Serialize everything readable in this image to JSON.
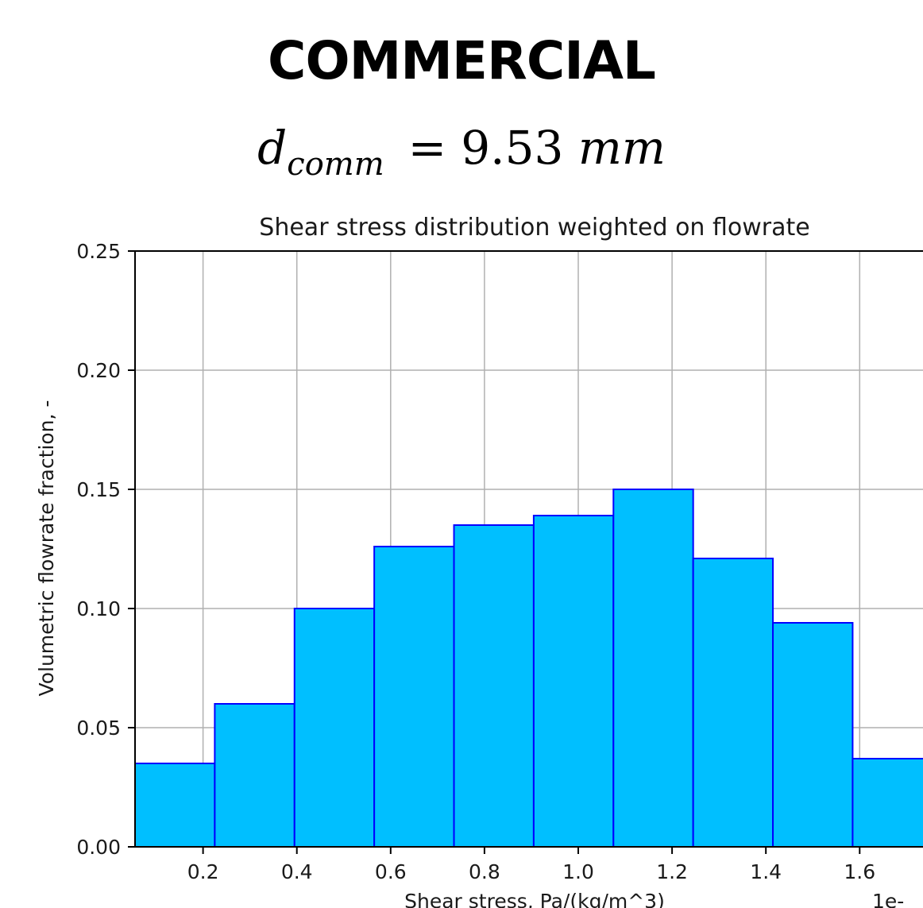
{
  "header": {
    "title": "COMMERCIAL",
    "formula": {
      "variable": "d",
      "subscript": "comm",
      "equals": "=",
      "value": "9.53",
      "unit": "mm"
    }
  },
  "chart_data": {
    "type": "bar",
    "title": "Shear stress distribution weighted on flowrate",
    "xlabel": "Shear stress, Pa/(kg/m^3)",
    "ylabel": "Volumetric flowrate fraction, -",
    "offset_label": "1e-",
    "xlim": [
      0.055,
      1.735
    ],
    "ylim": [
      0,
      0.25
    ],
    "x_ticks": [
      0.2,
      0.4,
      0.6,
      0.8,
      1.0,
      1.2,
      1.4,
      1.6
    ],
    "x_tick_labels": [
      "0.2",
      "0.4",
      "0.6",
      "0.8",
      "1.0",
      "1.2",
      "1.4",
      "1.6"
    ],
    "y_ticks": [
      0.0,
      0.05,
      0.1,
      0.15,
      0.2,
      0.25
    ],
    "y_tick_labels": [
      "0.00",
      "0.05",
      "0.10",
      "0.15",
      "0.20",
      "0.25"
    ],
    "grid": true,
    "bar_color": "#00bfff",
    "edge_color": "#0000ff",
    "bins": [
      {
        "x0": 0.055,
        "x1": 0.225,
        "value": 0.035
      },
      {
        "x0": 0.225,
        "x1": 0.395,
        "value": 0.06
      },
      {
        "x0": 0.395,
        "x1": 0.565,
        "value": 0.1
      },
      {
        "x0": 0.565,
        "x1": 0.735,
        "value": 0.126
      },
      {
        "x0": 0.735,
        "x1": 0.905,
        "value": 0.135
      },
      {
        "x0": 0.905,
        "x1": 1.075,
        "value": 0.139
      },
      {
        "x0": 1.075,
        "x1": 1.245,
        "value": 0.15
      },
      {
        "x0": 1.245,
        "x1": 1.415,
        "value": 0.121
      },
      {
        "x0": 1.415,
        "x1": 1.585,
        "value": 0.094
      },
      {
        "x0": 1.585,
        "x1": 1.755,
        "value": 0.037
      }
    ]
  }
}
